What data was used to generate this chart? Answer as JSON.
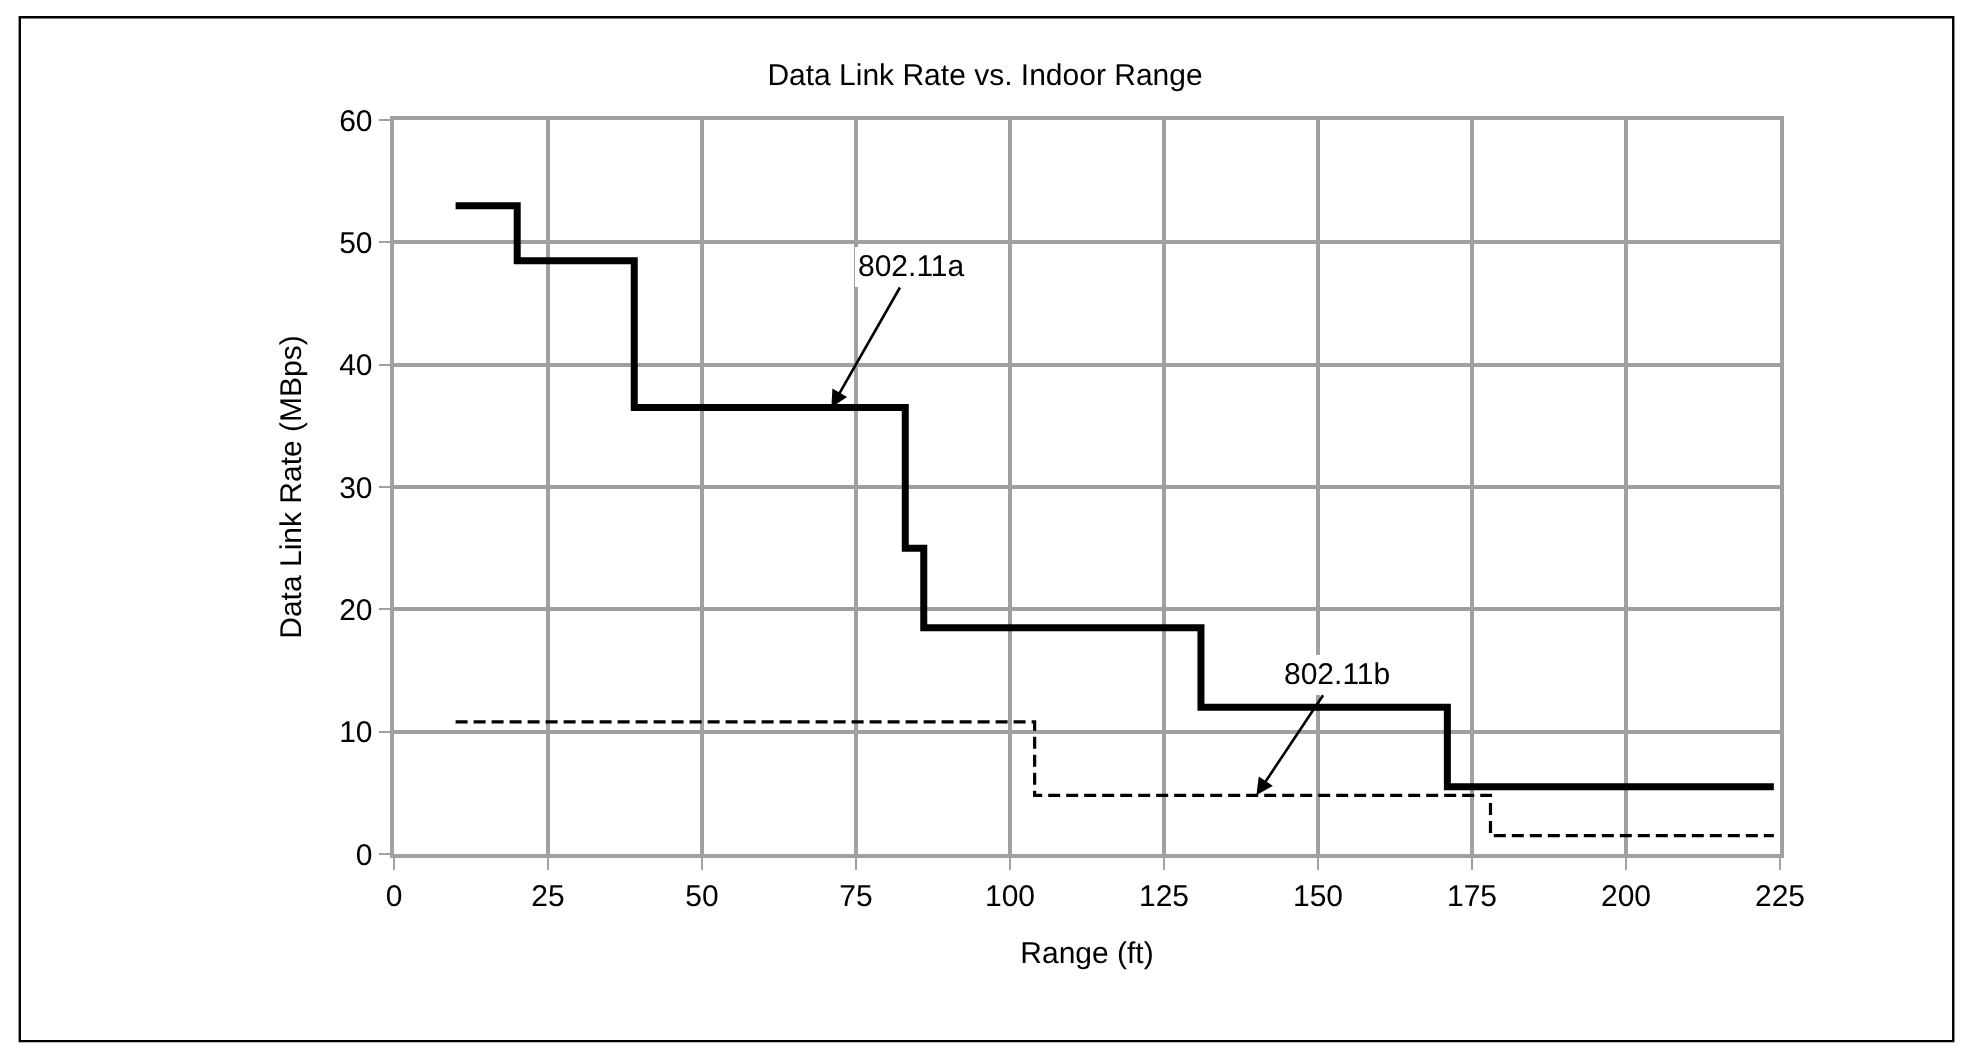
{
  "chart_data": {
    "type": "step",
    "title": "Data Link Rate vs. Indoor Range",
    "xlabel": "Range (ft)",
    "ylabel": "Data Link Rate (MBps)",
    "xlim": [
      0,
      225
    ],
    "xticks": [
      0,
      25,
      50,
      75,
      100,
      125,
      150,
      175,
      200,
      225
    ],
    "ylim": [
      0,
      60
    ],
    "yticks": [
      0,
      10,
      20,
      30,
      40,
      50,
      60
    ],
    "grid": true,
    "series": [
      {
        "color": "#000000",
        "line_style": "solid",
        "x": [
          10,
          20,
          39,
          83,
          86,
          131,
          171,
          224
        ],
        "values": [
          53,
          48.5,
          36.5,
          25,
          18.5,
          12,
          5.5,
          5.5
        ]
      },
      {
        "color": "#000000",
        "line_style": "dashed",
        "x": [
          10,
          104,
          178,
          224
        ],
        "values": [
          10.8,
          4.8,
          1.5,
          1.5
        ]
      }
    ],
    "annotations": [
      {
        "text": "802.11a",
        "x": 71,
        "y": 36.5
      },
      {
        "text": "802.11b",
        "x": 140,
        "y": 4.8
      }
    ]
  }
}
